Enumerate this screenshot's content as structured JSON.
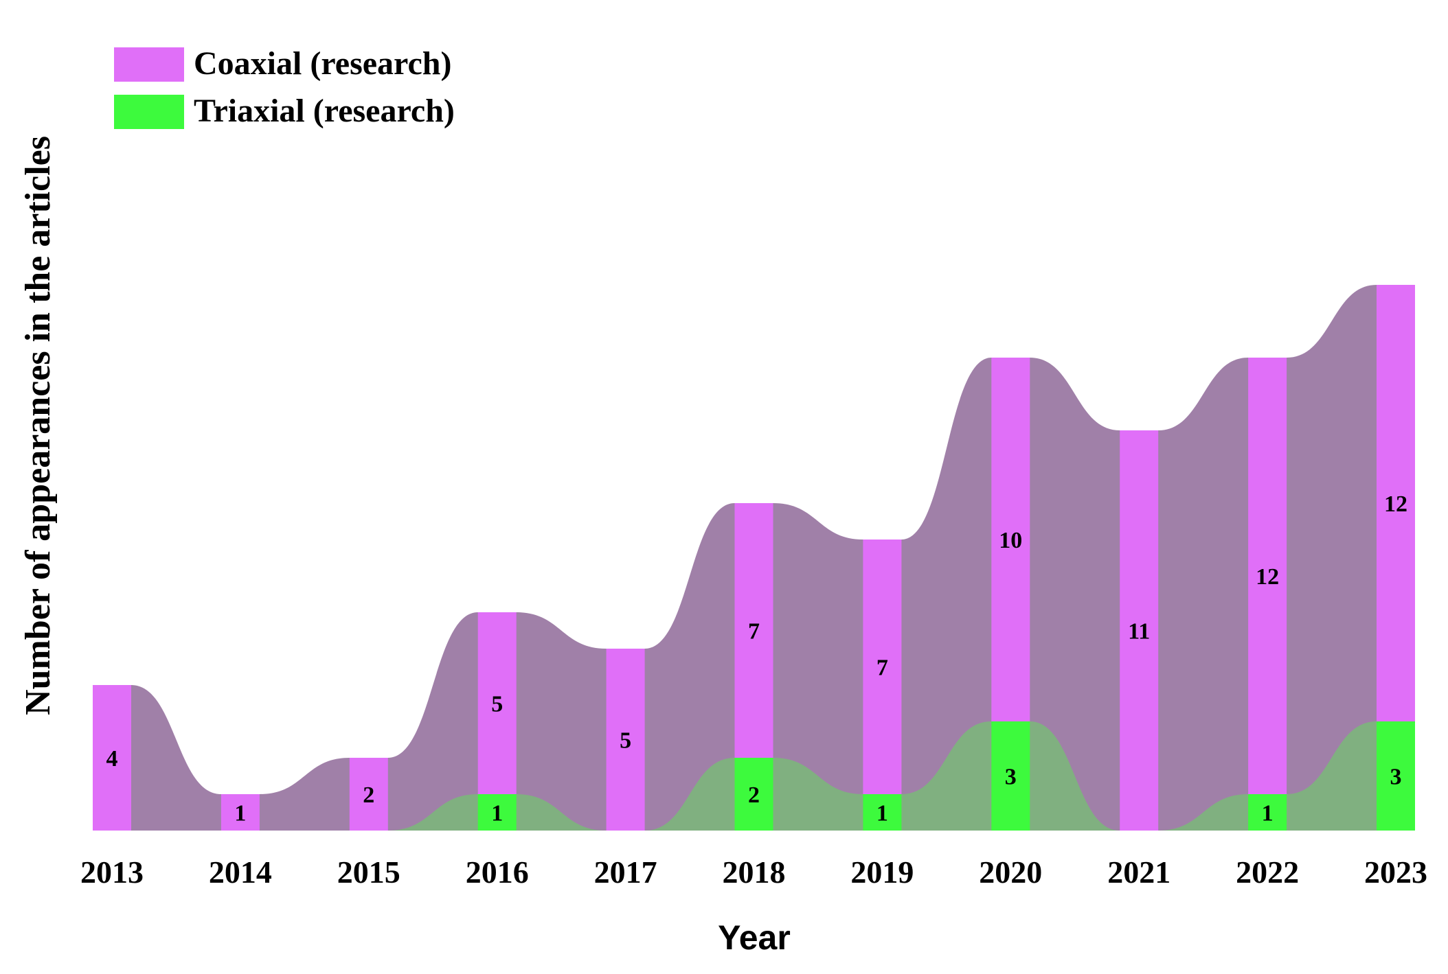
{
  "chart_data": {
    "type": "bar",
    "subtype": "stacked bar with smoothed stream bands",
    "title": "",
    "xlabel": "Year",
    "ylabel": "Number of appearances in the articles",
    "categories": [
      "2013",
      "2014",
      "2015",
      "2016",
      "2017",
      "2018",
      "2019",
      "2020",
      "2021",
      "2022",
      "2023"
    ],
    "series": [
      {
        "name": "Triaxial (research)",
        "color": "#3dfa3d",
        "band_color": "#80b080",
        "values": [
          0,
          0,
          0,
          1,
          0,
          2,
          1,
          3,
          0,
          1,
          3
        ]
      },
      {
        "name": "Coaxial (research)",
        "color": "#e06ff8",
        "band_color": "#a080a8",
        "values": [
          4,
          1,
          2,
          5,
          5,
          7,
          7,
          10,
          11,
          12,
          12
        ]
      }
    ],
    "legend": [
      "Coaxial (research)",
      "Triaxial (research)"
    ],
    "legend_position": "top-left",
    "grid": false,
    "ylim": [
      0,
      15
    ]
  }
}
